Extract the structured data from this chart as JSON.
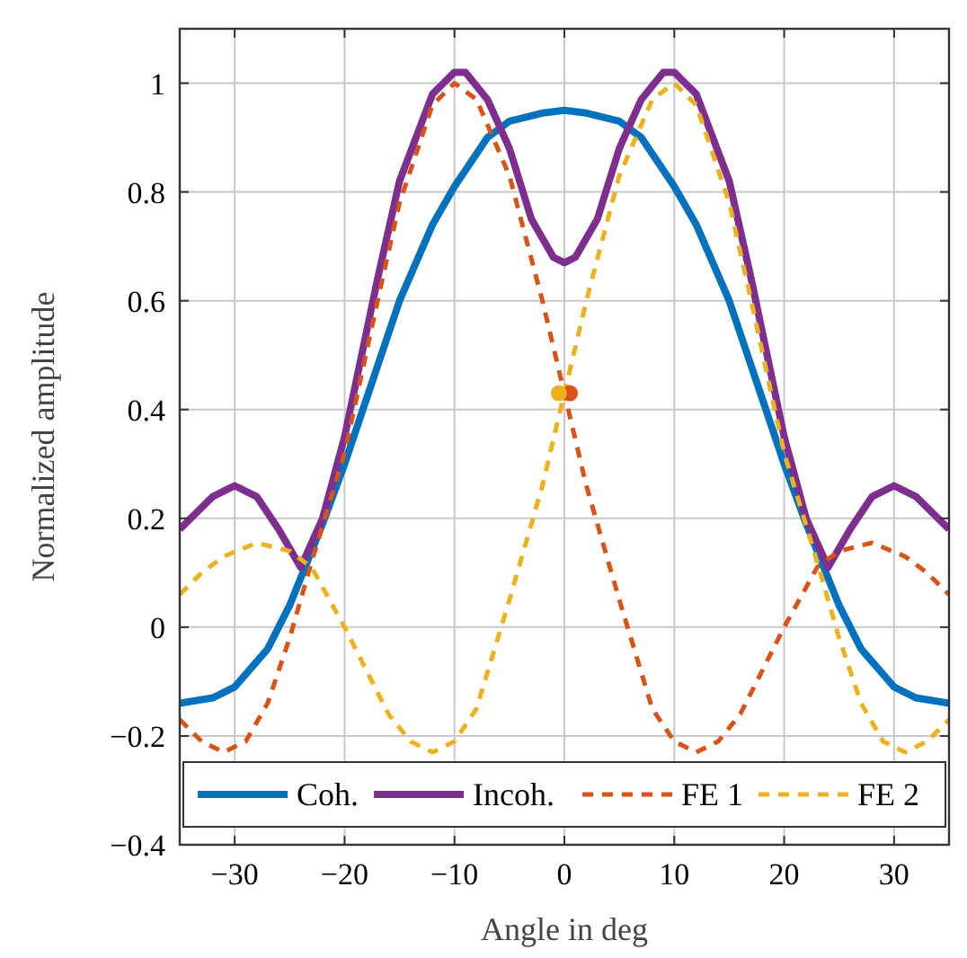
{
  "chart_data": {
    "type": "line",
    "xlabel": "Angle in deg",
    "ylabel": "Normalized amplitude",
    "xlim": [
      -35,
      35
    ],
    "ylim": [
      -0.4,
      1.1
    ],
    "xticks": [
      -30,
      -20,
      -10,
      0,
      10,
      20,
      30
    ],
    "yticks": [
      -0.4,
      -0.2,
      0,
      0.2,
      0.4,
      0.6,
      0.8,
      1
    ],
    "grid": true,
    "legend": "bottom",
    "marker": "none",
    "series": [
      {
        "name": "Coh.",
        "color": "#0072bd",
        "line_style": "solid",
        "x": [
          -35,
          -32,
          -30,
          -27,
          -25,
          -22,
          -20,
          -17,
          -15,
          -12,
          -10,
          -7,
          -5,
          -2,
          0,
          2,
          5,
          7,
          10,
          12,
          15,
          17,
          20,
          22,
          25,
          27,
          30,
          32,
          35
        ],
        "values": [
          -0.14,
          -0.13,
          -0.11,
          -0.04,
          0.04,
          0.19,
          0.3,
          0.48,
          0.6,
          0.74,
          0.81,
          0.9,
          0.93,
          0.945,
          0.95,
          0.945,
          0.93,
          0.9,
          0.81,
          0.74,
          0.6,
          0.48,
          0.3,
          0.19,
          0.04,
          -0.04,
          -0.11,
          -0.13,
          -0.14
        ]
      },
      {
        "name": "Incoh.",
        "color": "#7e2f8e",
        "line_style": "solid",
        "x": [
          -35,
          -32,
          -30,
          -28,
          -26,
          -24,
          -22,
          -20,
          -17,
          -15,
          -12,
          -10,
          -9,
          -7,
          -5,
          -3,
          -1,
          0,
          1,
          3,
          5,
          7,
          9,
          10,
          12,
          15,
          17,
          20,
          22,
          24,
          26,
          28,
          30,
          32,
          35
        ],
        "values": [
          0.18,
          0.24,
          0.26,
          0.24,
          0.18,
          0.11,
          0.2,
          0.35,
          0.64,
          0.82,
          0.98,
          1.02,
          1.02,
          0.97,
          0.88,
          0.75,
          0.68,
          0.67,
          0.68,
          0.75,
          0.88,
          0.97,
          1.02,
          1.02,
          0.98,
          0.82,
          0.64,
          0.35,
          0.2,
          0.11,
          0.18,
          0.24,
          0.26,
          0.24,
          0.18
        ]
      },
      {
        "name": "FE 1",
        "color": "#d95319",
        "line_style": "dashed",
        "x": [
          -35,
          -33,
          -31,
          -29,
          -27,
          -25,
          -23,
          -20,
          -17,
          -15,
          -12,
          -10,
          -8,
          -5,
          -2,
          0,
          2,
          5,
          8,
          10,
          12,
          14,
          16,
          18,
          20,
          23,
          25,
          28,
          31,
          33,
          35
        ],
        "values": [
          -0.17,
          -0.21,
          -0.23,
          -0.21,
          -0.14,
          -0.02,
          0.12,
          0.32,
          0.6,
          0.78,
          0.96,
          1,
          0.97,
          0.83,
          0.6,
          0.43,
          0.26,
          0.05,
          -0.15,
          -0.21,
          -0.23,
          -0.21,
          -0.16,
          -0.08,
          0,
          0.11,
          0.14,
          0.155,
          0.13,
          0.1,
          0.06
        ]
      },
      {
        "name": "FE 2",
        "color": "#edb120",
        "line_style": "dashed",
        "x": [
          -35,
          -33,
          -31,
          -28,
          -25,
          -23,
          -20,
          -18,
          -16,
          -14,
          -12,
          -10,
          -8,
          -5,
          -2,
          0,
          2,
          5,
          8,
          10,
          12,
          15,
          17,
          20,
          23,
          25,
          27,
          29,
          31,
          33,
          35
        ],
        "values": [
          0.06,
          0.1,
          0.13,
          0.155,
          0.14,
          0.11,
          0,
          -0.08,
          -0.16,
          -0.21,
          -0.23,
          -0.21,
          -0.15,
          0.05,
          0.26,
          0.43,
          0.6,
          0.83,
          0.97,
          1,
          0.96,
          0.78,
          0.6,
          0.32,
          0.12,
          -0.02,
          -0.14,
          -0.21,
          -0.23,
          -0.21,
          -0.17
        ]
      },
      {
        "type": "scatter",
        "color": "#d95319",
        "marker": "circle",
        "x": [
          0.5
        ],
        "values": [
          0.43
        ]
      },
      {
        "type": "scatter",
        "color": "#edb120",
        "marker": "circle",
        "x": [
          -0.5
        ],
        "values": [
          0.43
        ]
      }
    ]
  }
}
